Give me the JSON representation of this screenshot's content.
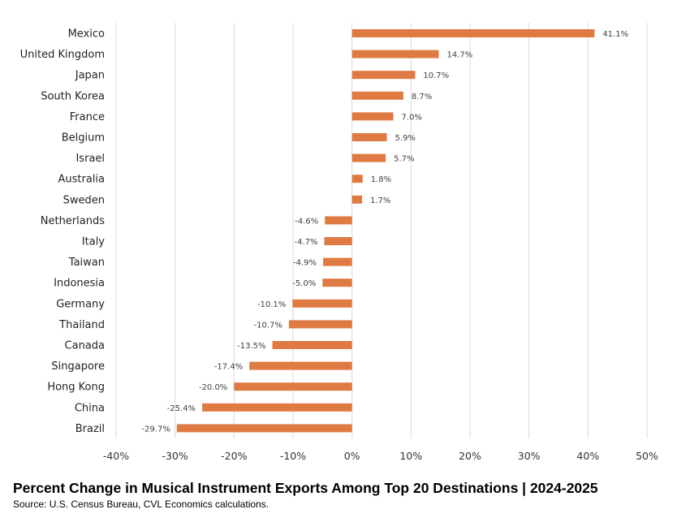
{
  "chart_data": {
    "type": "bar",
    "orientation": "horizontal",
    "title": "Percent Change in Musical Instrument Exports Among Top 20 Destinations | 2024-2025",
    "source": "Source: U.S. Census Bureau, CVL Economics calculations.",
    "categories": [
      "Mexico",
      "United Kingdom",
      "Japan",
      "South Korea",
      "France",
      "Belgium",
      "Israel",
      "Australia",
      "Sweden",
      "Netherlands",
      "Italy",
      "Taiwan",
      "Indonesia",
      "Germany",
      "Thailand",
      "Canada",
      "Singapore",
      "Hong Kong",
      "China",
      "Brazil"
    ],
    "values": [
      41.1,
      14.7,
      10.7,
      8.7,
      7.0,
      5.9,
      5.7,
      1.8,
      1.7,
      -4.6,
      -4.7,
      -4.9,
      -5.0,
      -10.1,
      -10.7,
      -13.5,
      -17.4,
      -20.0,
      -25.4,
      -29.7
    ],
    "data_labels": [
      "41.1%",
      "14.7%",
      "10.7%",
      "8.7%",
      "7.0%",
      "5.9%",
      "5.7%",
      "1.8%",
      "1.7%",
      "-4.6%",
      "-4.7%",
      "-4.9%",
      "-5.0%",
      "-10.1%",
      "-10.7%",
      "-13.5%",
      "-17.4%",
      "-20.0%",
      "-25.4%",
      "-29.7%"
    ],
    "xlim": [
      -40,
      50
    ],
    "xticks": [
      -40,
      -30,
      -20,
      -10,
      0,
      10,
      20,
      30,
      40,
      50
    ],
    "xtick_labels": [
      "-40%",
      "-30%",
      "-20%",
      "-10%",
      "0%",
      "10%",
      "20%",
      "30%",
      "40%",
      "50%"
    ],
    "grid": "vertical",
    "bar_color": "#E07A43",
    "grid_color": "#D9D9D9"
  }
}
